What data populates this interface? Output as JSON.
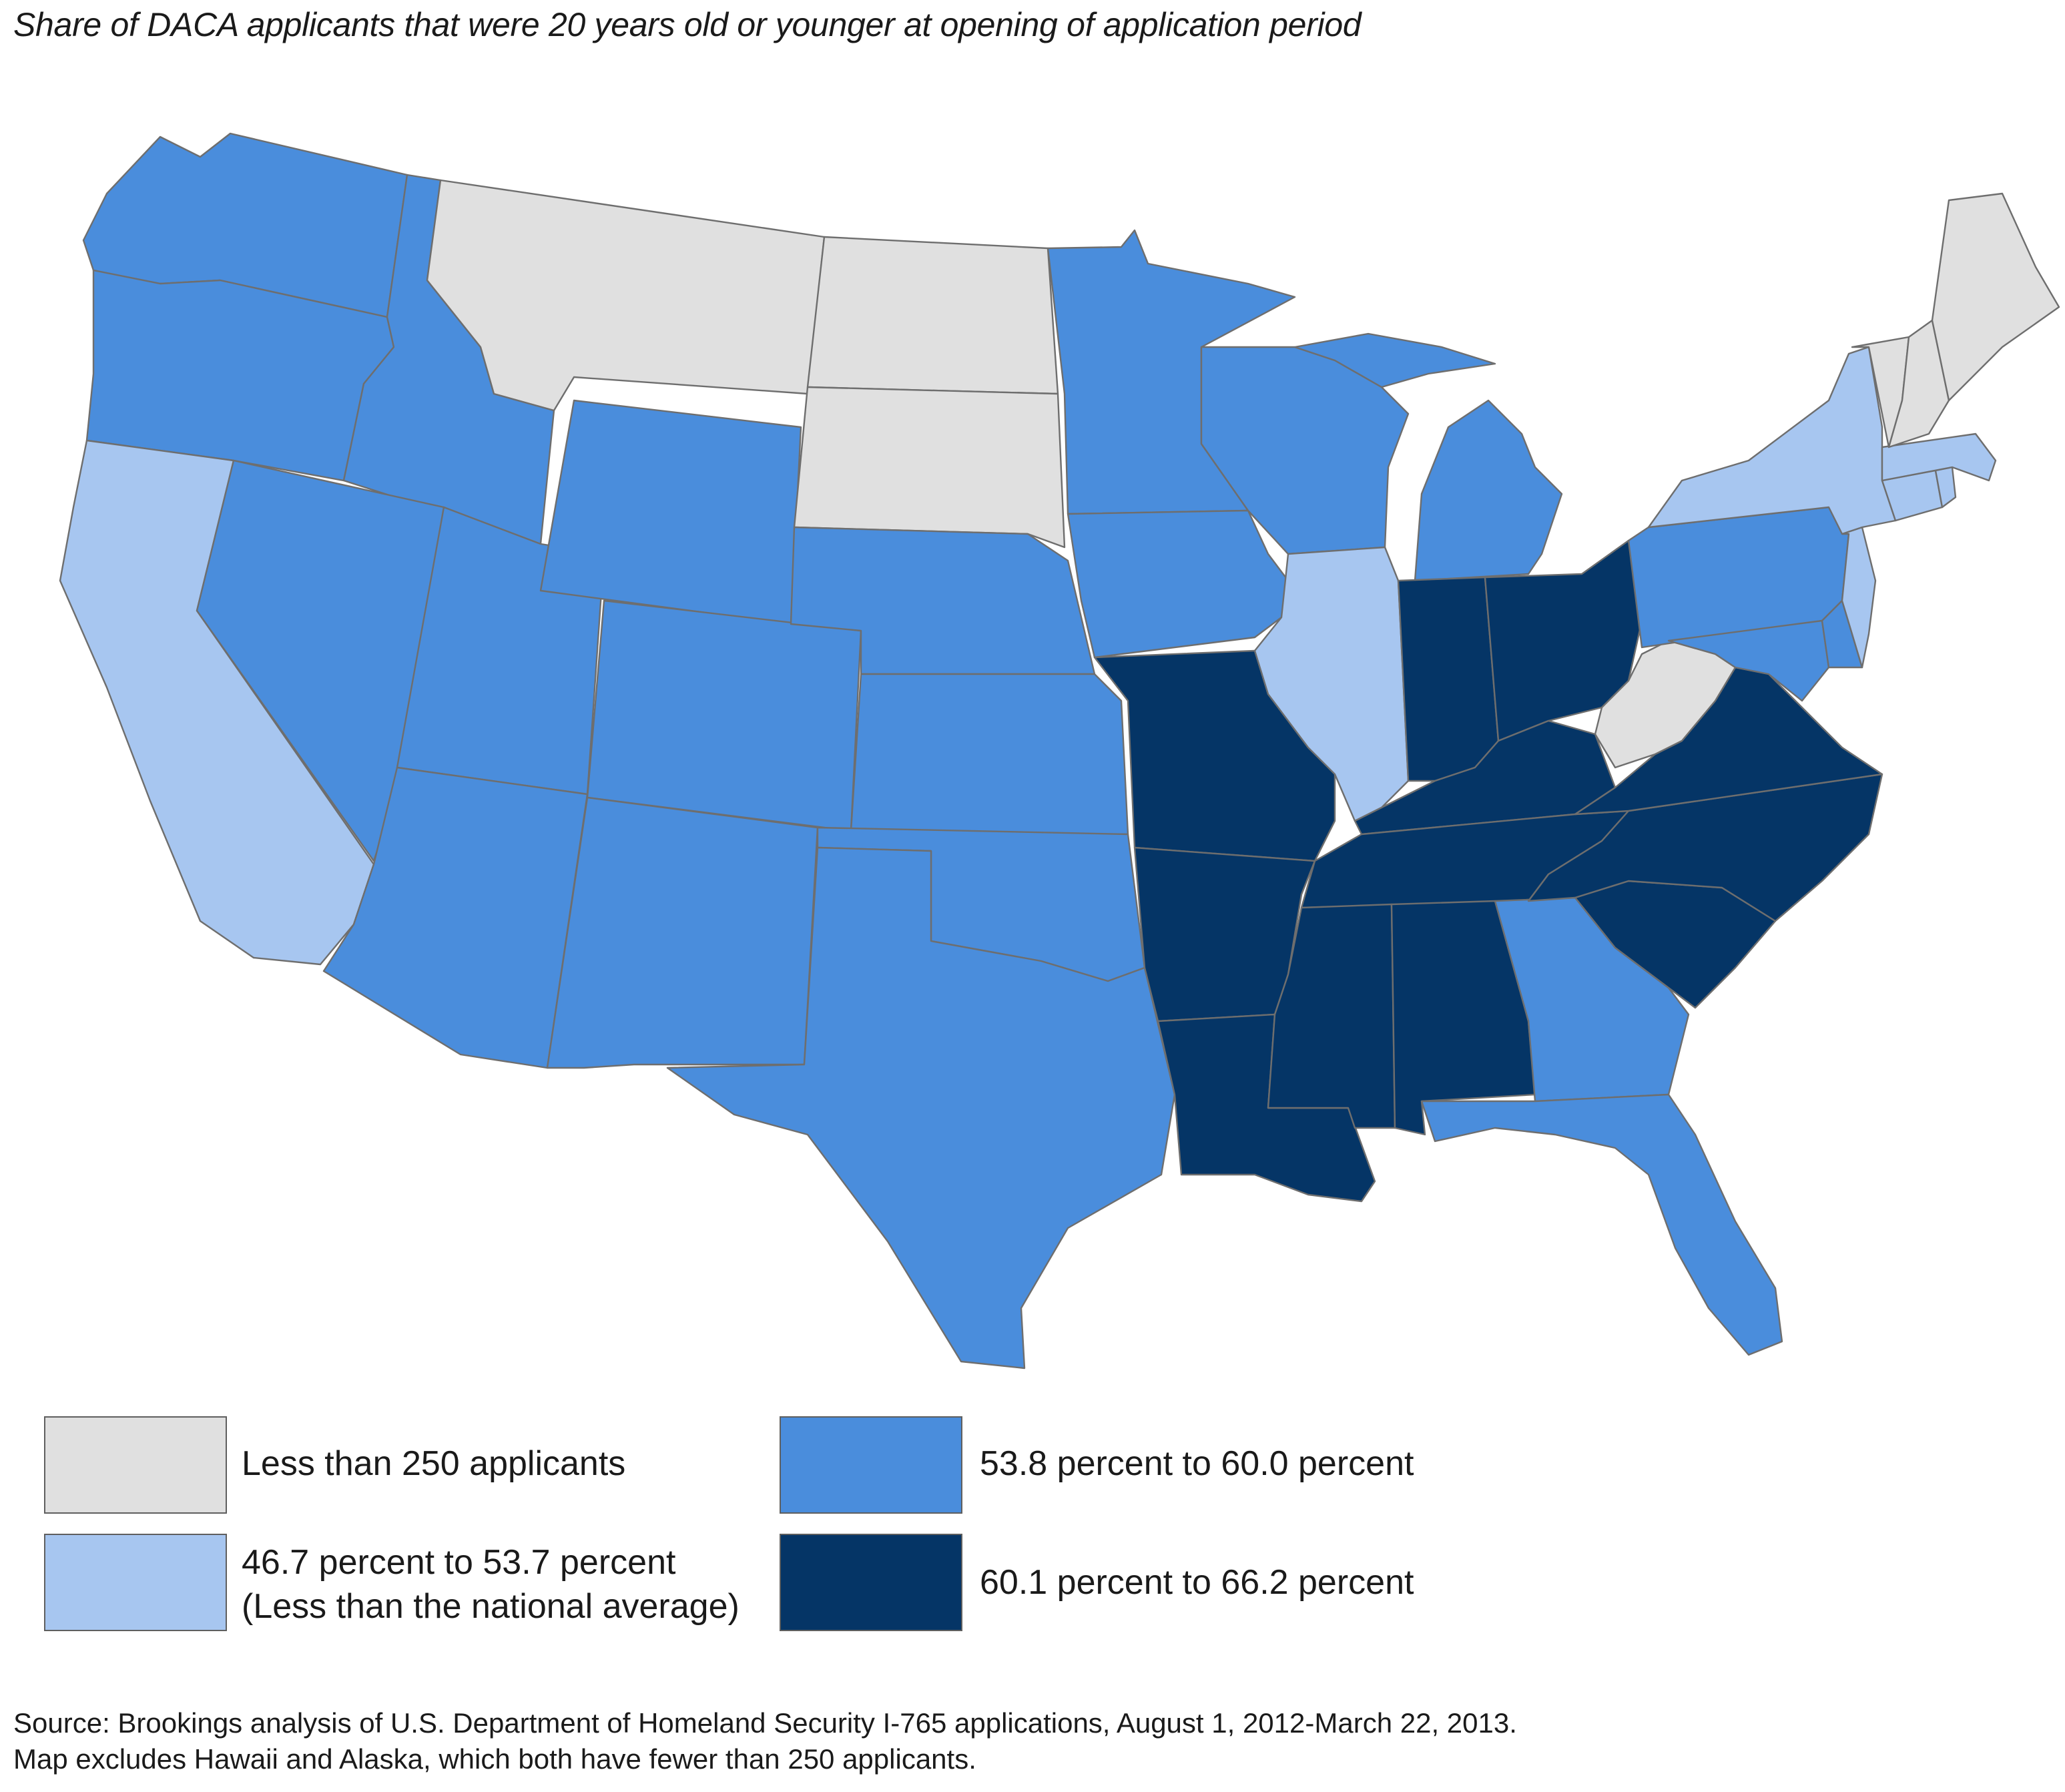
{
  "title": "Share of DACA applicants that were 20 years old or younger at opening of application period",
  "legend": [
    {
      "label": "Less than 250 applicants",
      "sublabel": "",
      "color": "#e0e0e0"
    },
    {
      "label": "53.8 percent to 60.0 percent",
      "sublabel": "",
      "color": "#4a8ddc"
    },
    {
      "label": "46.7 percent to 53.7 percent",
      "sublabel": "(Less than the national average)",
      "color": "#a7c6f0"
    },
    {
      "label": "60.1 percent to 66.2 percent",
      "sublabel": "",
      "color": "#053566"
    }
  ],
  "states": {
    "less_than_250": [
      "Montana",
      "North Dakota",
      "South Dakota",
      "West Virginia",
      "Vermont",
      "New Hampshire",
      "Maine"
    ],
    "46.7_to_53.7": [
      "California",
      "Illinois",
      "New York",
      "New Jersey",
      "Massachusetts",
      "Connecticut",
      "Rhode Island"
    ],
    "53.8_to_60.0": [
      "Washington",
      "Oregon",
      "Idaho",
      "Nevada",
      "Utah",
      "Arizona",
      "Wyoming",
      "Colorado",
      "New Mexico",
      "Nebraska",
      "Kansas",
      "Oklahoma",
      "Texas",
      "Minnesota",
      "Iowa",
      "Wisconsin",
      "Michigan",
      "Pennsylvania",
      "Maryland",
      "Delaware",
      "Georgia",
      "Florida"
    ],
    "60.1_to_66.2": [
      "Missouri",
      "Arkansas",
      "Louisiana",
      "Mississippi",
      "Alabama",
      "Tennessee",
      "Kentucky",
      "Indiana",
      "Ohio",
      "Virginia",
      "North Carolina",
      "South Carolina"
    ]
  },
  "source": {
    "line1": "Source: Brookings analysis of U.S. Department of Homeland Security I-765 applications, August 1, 2012-March 22, 2013.",
    "line2": "Map excludes Hawaii and Alaska, which both have fewer than 250 applicants."
  }
}
